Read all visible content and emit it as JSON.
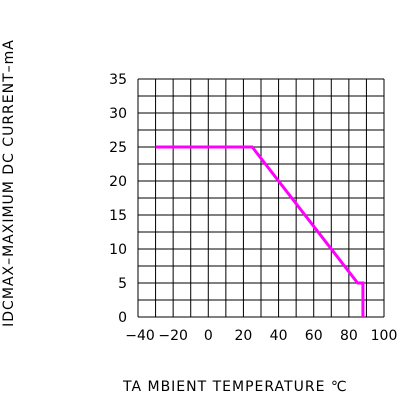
{
  "chart_data": {
    "type": "line",
    "xlabel": "TA MBIENT TEMPERATURE ℃",
    "ylabel": "IDCMAX–MAXIMUM DC CURRENT–mA",
    "xlim": [
      -40,
      100
    ],
    "ylim": [
      0,
      35
    ],
    "x_ticks": [
      "−40",
      "−20",
      "0",
      "20",
      "40",
      "60",
      "80",
      "100"
    ],
    "y_ticks": [
      "0",
      "5",
      "10",
      "15",
      "20",
      "25",
      "30",
      "35"
    ],
    "grid": true,
    "series": [
      {
        "color": "#ff00ff",
        "x": [
          -30,
          25,
          85,
          88,
          88
        ],
        "y": [
          25,
          25,
          5,
          5,
          0
        ]
      }
    ]
  }
}
